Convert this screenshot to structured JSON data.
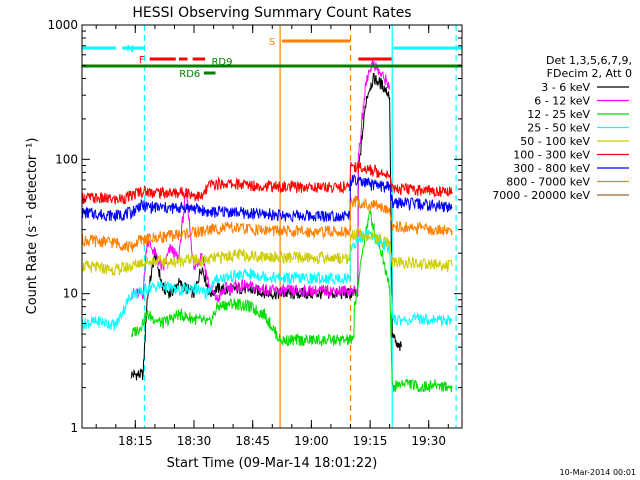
{
  "chart_data": {
    "type": "line",
    "title": "HESSI Observing Summary Count Rates",
    "xlabel": "Start Time (09-Mar-14 18:01:22)",
    "ylabel": "Count Rate (s⁻¹ detector⁻¹)",
    "y_scale": "log",
    "xlim": [
      "18:01:22",
      "19:38:30"
    ],
    "ylim": [
      1,
      1000
    ],
    "grid": false,
    "x_ticks": [
      "18:15",
      "18:30",
      "18:45",
      "19:00",
      "19:15",
      "19:30"
    ],
    "y_ticks": [
      "1",
      "10",
      "100",
      "1000"
    ],
    "footer": "10-Mar-2014 00:01",
    "legend": {
      "position": "right",
      "header": [
        "Det 1,3,5,6,7,9,",
        "FDecim 2, Att 0"
      ],
      "entries": [
        {
          "label": "3 - 6 keV",
          "color": "#000000"
        },
        {
          "label": "6 - 12 keV",
          "color": "#ff00ff"
        },
        {
          "label": "12 - 25 keV",
          "color": "#00dd00"
        },
        {
          "label": "25 - 50 keV",
          "color": "#00ffff"
        },
        {
          "label": "50 - 100 keV",
          "color": "#cccc00"
        },
        {
          "label": "100 - 300 keV",
          "color": "#ff0000"
        },
        {
          "label": "300 - 800 keV",
          "color": "#0000ff"
        },
        {
          "label": "800 - 7000 keV",
          "color": "#ff8000"
        },
        {
          "label": "7000 - 20000 keV",
          "color": "#996633"
        }
      ]
    },
    "flags": [
      {
        "label": "N",
        "color": "#00ffff",
        "segments": [
          [
            "18:01:22",
            "18:10:00"
          ],
          [
            "18:11:40",
            "18:17:30"
          ],
          [
            "19:21:00",
            "19:38:30"
          ]
        ]
      },
      {
        "label": "F",
        "color": "#ff0000",
        "segments": [
          [
            "18:18:40",
            "18:25:20"
          ],
          [
            "18:26:10",
            "18:28:20"
          ],
          [
            "18:29:40",
            "18:32:50"
          ]
        ]
      },
      {
        "label": "RD6",
        "color": "#008000",
        "segments": [
          [
            "18:32:30",
            "18:35:30"
          ]
        ]
      },
      {
        "label": "RD9",
        "color": "#008000",
        "segments": [
          [
            "18:01:22",
            "19:38:30"
          ]
        ]
      },
      {
        "label": "S",
        "color": "#ff8000",
        "segments": [
          [
            "18:52:30",
            "19:10:00"
          ]
        ]
      },
      {
        "label": "",
        "color": "#ff0000",
        "segments": [
          [
            "19:12:00",
            "19:20:30"
          ]
        ]
      }
    ],
    "vertical_markers": [
      {
        "x": "18:17:20",
        "color": "#00ffff",
        "style": "dashed"
      },
      {
        "x": "18:52:00",
        "color": "#ff8000",
        "style": "solid"
      },
      {
        "x": "19:10:00",
        "color": "#ff8000",
        "style": "dashed"
      },
      {
        "x": "19:20:40",
        "color": "#00ffff",
        "style": "solid"
      },
      {
        "x": "19:37:00",
        "color": "#00ffff",
        "style": "dashed"
      }
    ],
    "series": [
      {
        "name": "3 - 6 keV",
        "color": "#000000",
        "x": [
          "18:14",
          "18:17",
          "18:18",
          "18:20",
          "18:22",
          "18:24",
          "18:26",
          "18:28",
          "18:30",
          "18:32",
          "18:34",
          "18:36",
          "18:38",
          "18:42",
          "18:46",
          "18:50",
          "19:12",
          "19:13",
          "19:14",
          "19:15",
          "19:16",
          "19:17",
          "19:18",
          "19:19",
          "19:20",
          "19:20:40",
          "19:22",
          "19:23"
        ],
        "values": [
          2.5,
          2.5,
          9,
          20,
          11,
          10,
          12,
          11,
          10,
          16,
          10,
          11,
          10.5,
          11,
          10.5,
          10,
          80,
          150,
          280,
          350,
          400,
          380,
          360,
          330,
          300,
          5,
          4,
          4
        ]
      },
      {
        "name": "6 - 12 keV",
        "color": "#ff00ff",
        "x": [
          "18:14",
          "18:17",
          "18:18",
          "18:20",
          "18:22",
          "18:24",
          "18:26",
          "18:28",
          "18:30",
          "18:32",
          "18:34",
          "18:36",
          "18:38",
          "18:42",
          "18:46",
          "18:50",
          "19:12",
          "19:13",
          "19:14",
          "19:15",
          "19:16",
          "19:17",
          "19:18",
          "19:19",
          "19:20"
        ],
        "values": [
          10,
          10,
          25,
          20,
          15,
          22,
          18,
          60,
          15,
          20,
          11,
          9,
          11,
          11.5,
          11,
          10.5,
          100,
          200,
          380,
          480,
          520,
          460,
          420,
          390,
          350
        ]
      },
      {
        "name": "12 - 25 keV",
        "color": "#00dd00",
        "x": [
          "18:14",
          "18:16",
          "18:18",
          "18:22",
          "18:26",
          "18:30",
          "18:34",
          "18:36",
          "18:40",
          "18:44",
          "18:48",
          "18:52",
          "19:11",
          "19:12",
          "19:13",
          "19:14",
          "19:15",
          "19:16",
          "19:17",
          "19:18",
          "19:19",
          "19:20",
          "19:20:40",
          "19:24",
          "19:28",
          "19:32",
          "19:36"
        ],
        "values": [
          5,
          5.5,
          7,
          6,
          7,
          6.5,
          6,
          8,
          8.5,
          8,
          7,
          4.5,
          8,
          12,
          20,
          30,
          40,
          30,
          25,
          20,
          15,
          12,
          2,
          2.2,
          2,
          2.1,
          2
        ]
      },
      {
        "name": "25 - 50 keV",
        "color": "#00ffff",
        "x": [
          "18:01:22",
          "18:06",
          "18:10",
          "18:14",
          "18:16",
          "18:18",
          "18:22",
          "18:26",
          "18:30",
          "18:33",
          "18:36",
          "18:40",
          "18:44",
          "18:48",
          "18:52",
          "19:10",
          "19:12",
          "19:14",
          "19:16",
          "19:18",
          "19:20",
          "19:20:40",
          "19:24",
          "19:28",
          "19:32",
          "19:36"
        ],
        "values": [
          6,
          6.2,
          5.8,
          10,
          10,
          11,
          11.5,
          10.5,
          11,
          10,
          13,
          13.5,
          14,
          13.5,
          13,
          22,
          25,
          28,
          26,
          24,
          22,
          6.5,
          6.3,
          6.5,
          6.4,
          6.3
        ]
      },
      {
        "name": "50 - 100 keV",
        "color": "#cccc00",
        "x": [
          "18:01:22",
          "18:06",
          "18:10",
          "18:14",
          "18:16",
          "18:20",
          "18:24",
          "18:28",
          "18:32",
          "18:34",
          "18:38",
          "18:42",
          "18:46",
          "18:50",
          "18:52",
          "19:10",
          "19:12",
          "19:14",
          "19:16",
          "19:18",
          "19:20",
          "19:20:40",
          "19:24",
          "19:28",
          "19:32",
          "19:36"
        ],
        "values": [
          16,
          15.5,
          15,
          16,
          17,
          17.5,
          17,
          18,
          17.5,
          18,
          19,
          19.5,
          19,
          19,
          18.5,
          27,
          28,
          27,
          26,
          25,
          24,
          17,
          17,
          16.5,
          16.5,
          16
        ]
      },
      {
        "name": "100 - 300 keV",
        "color": "#ff0000",
        "x": [
          "18:01:22",
          "18:06",
          "18:10",
          "18:14",
          "18:16",
          "18:20",
          "18:24",
          "18:28",
          "18:32",
          "18:34",
          "18:38",
          "18:42",
          "18:46",
          "18:50",
          "18:52",
          "19:10",
          "19:12",
          "19:14",
          "19:16",
          "19:18",
          "19:20",
          "19:20:40",
          "19:24",
          "19:28",
          "19:32",
          "19:36"
        ],
        "values": [
          52,
          51,
          50,
          53,
          58,
          57,
          56,
          57,
          52,
          65,
          66,
          65,
          64,
          63,
          62,
          90,
          88,
          85,
          82,
          80,
          78,
          60,
          60,
          59,
          58,
          57
        ]
      },
      {
        "name": "300 - 800 keV",
        "color": "#0000ff",
        "x": [
          "18:01:22",
          "18:06",
          "18:10",
          "18:14",
          "18:16",
          "18:20",
          "18:24",
          "18:28",
          "18:32",
          "18:34",
          "18:38",
          "18:42",
          "18:46",
          "18:50",
          "18:52",
          "19:10",
          "19:12",
          "19:14",
          "19:16",
          "19:18",
          "19:20",
          "19:20:40",
          "19:24",
          "19:28",
          "19:32",
          "19:36"
        ],
        "values": [
          40,
          39,
          38,
          40,
          45,
          44,
          43,
          44,
          42,
          40,
          41,
          40,
          39,
          39,
          38,
          70,
          68,
          66,
          64,
          63,
          62,
          48,
          47,
          46,
          45,
          44
        ]
      },
      {
        "name": "800 - 7000 keV",
        "color": "#ff8000",
        "x": [
          "18:01:22",
          "18:06",
          "18:10",
          "18:14",
          "18:16",
          "18:20",
          "18:24",
          "18:28",
          "18:32",
          "18:34",
          "18:38",
          "18:42",
          "18:46",
          "18:50",
          "18:52",
          "19:10",
          "19:12",
          "19:14",
          "19:16",
          "19:18",
          "19:20",
          "19:20:40",
          "19:24",
          "19:28",
          "19:32",
          "19:36"
        ],
        "values": [
          25,
          24.5,
          24,
          22,
          25,
          26,
          27,
          28,
          29,
          30,
          31,
          30.5,
          30,
          29.5,
          29,
          50,
          48,
          46,
          45,
          44,
          43,
          32,
          31,
          30.5,
          30,
          29.5
        ]
      }
    ]
  }
}
